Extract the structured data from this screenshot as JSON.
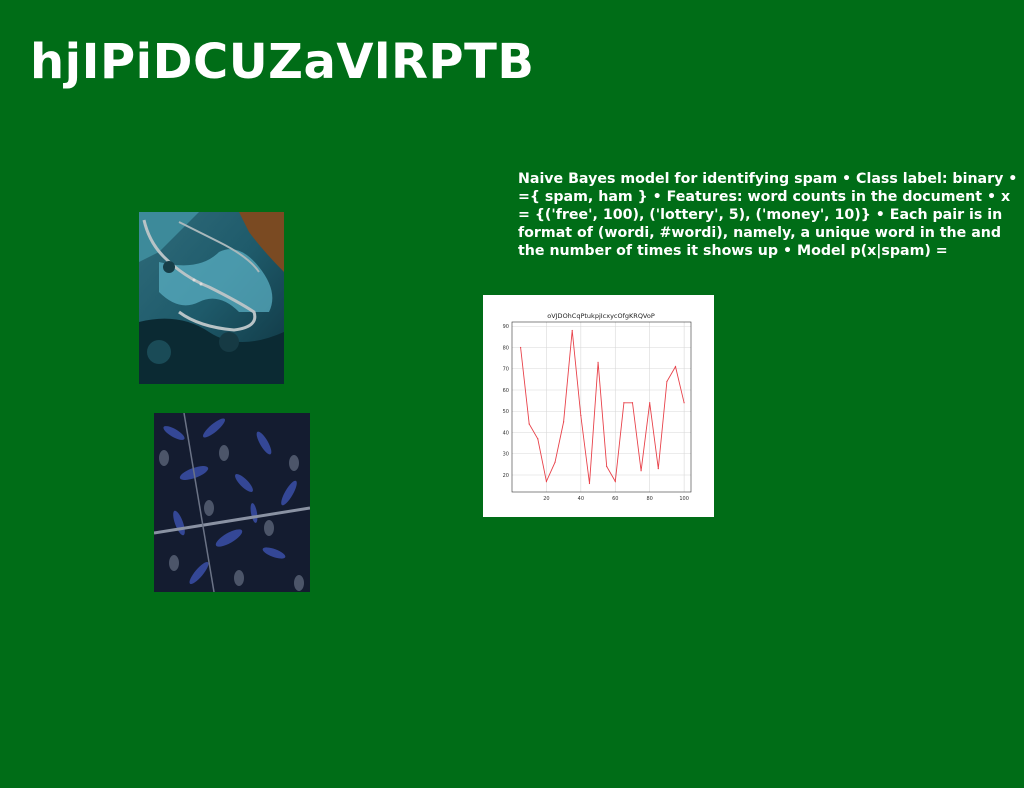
{
  "slide": {
    "title": "hjIPiDCUZaVlRPTB",
    "body": "Naive Bayes model for identifying spam • Class label: binary • ={ spam, ham } • Features: word counts in the document • x = {('free', 100), ('lottery', 5), ('money', 10)} • Each pair is in format of (wordi, #wordi), namely, a unique word in the and the number of times it shows up • Model p(x|spam) =",
    "background_color": "#006d17"
  },
  "images": [
    {
      "name": "mountain-road-photo",
      "description_icon": "photo-icon"
    },
    {
      "name": "blue-leaves-photo",
      "description_icon": "photo-icon"
    }
  ],
  "chart_data": {
    "type": "line",
    "title": "oVJDOhCqPtukpjIcxycOfgKRQVoP",
    "xlabel": "",
    "ylabel": "",
    "xlim": [
      0,
      104
    ],
    "ylim": [
      12,
      92
    ],
    "x_ticks": [
      20,
      40,
      60,
      80,
      100
    ],
    "y_ticks": [
      20,
      30,
      40,
      50,
      60,
      70,
      80,
      90
    ],
    "grid": true,
    "series": [
      {
        "color": "#e8424a",
        "x": [
          5,
          10,
          15,
          20,
          25,
          30,
          35,
          40,
          45,
          50,
          55,
          60,
          65,
          70,
          75,
          80,
          85,
          90,
          95,
          100
        ],
        "y": [
          80,
          44,
          37,
          17,
          26,
          45,
          88,
          48,
          16,
          73,
          24,
          17,
          54,
          54,
          22,
          54,
          23,
          64,
          71,
          54
        ]
      }
    ]
  }
}
